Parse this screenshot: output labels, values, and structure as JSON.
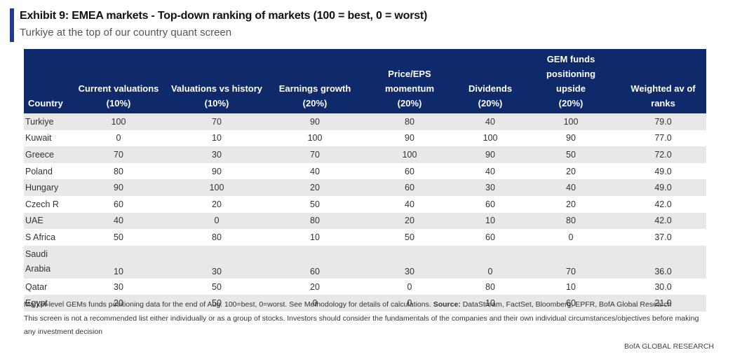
{
  "header": {
    "title": "Exhibit 9: EMEA markets - Top-down ranking of markets (100 = best, 0 = worst)",
    "subtitle": "Turkiye at the top of our country quant screen"
  },
  "table": {
    "columns": [
      {
        "line1": "",
        "line2": "",
        "line3": "Country"
      },
      {
        "line1": "",
        "line2": "Current valuations",
        "line3": "(10%)"
      },
      {
        "line1": "",
        "line2": "Valuations vs history",
        "line3": "(10%)"
      },
      {
        "line1": "",
        "line2": "Earnings growth",
        "line3": "(20%)"
      },
      {
        "line1": "Price/EPS",
        "line2": "momentum",
        "line3": "(20%)"
      },
      {
        "line1": "",
        "line2": "Dividends",
        "line3": "(20%)"
      },
      {
        "line1": "GEM funds positioning",
        "line2": "upside",
        "line3": "(20%)"
      },
      {
        "line1": "",
        "line2": "Weighted av of",
        "line3": "ranks"
      }
    ],
    "rows": [
      [
        "Turkiye",
        "100",
        "70",
        "90",
        "80",
        "40",
        "100",
        "79.0"
      ],
      [
        "Kuwait",
        "0",
        "10",
        "100",
        "90",
        "100",
        "90",
        "77.0"
      ],
      [
        "Greece",
        "70",
        "30",
        "70",
        "100",
        "90",
        "50",
        "72.0"
      ],
      [
        "Poland",
        "80",
        "90",
        "40",
        "60",
        "40",
        "20",
        "49.0"
      ],
      [
        "Hungary",
        "90",
        "100",
        "20",
        "60",
        "30",
        "40",
        "49.0"
      ],
      [
        "Czech R",
        "60",
        "20",
        "50",
        "40",
        "60",
        "20",
        "42.0"
      ],
      [
        "UAE",
        "40",
        "0",
        "80",
        "20",
        "10",
        "80",
        "42.0"
      ],
      [
        "S Africa",
        "50",
        "80",
        "10",
        "50",
        "60",
        "0",
        "37.0"
      ],
      [
        "Saudi Arabia",
        "10",
        "30",
        "60",
        "30",
        "0",
        "70",
        "36.0"
      ],
      [
        "Qatar",
        "30",
        "50",
        "20",
        "0",
        "80",
        "10",
        "30.0"
      ],
      [
        "Egypt",
        "20",
        "50",
        "0",
        "0",
        "10",
        "60",
        "21.0"
      ]
    ],
    "saudi_line1": "Saudi",
    "saudi_line2": "Arabia"
  },
  "notes": {
    "note1_text": "Market-level GEMs funds positioning data for the end of Aug. 100=best, 0=worst. See Methodology for details of calculations.",
    "note1_source_label": "Source:",
    "note1_source_text": "DataStream, FactSet, Bloomberg, EPFR, BofA Global Research",
    "note2": "This screen is not a recommended list either individually or as a group of stocks. Investors should consider the fundamentals of the companies and their own individual circumstances/objectives before making any investment decision"
  },
  "brand": "BofA GLOBAL RESEARCH",
  "colors": {
    "accent": "#1f3a93",
    "header_bg": "#0f2a6b",
    "stripe": "#e8e8e8"
  }
}
